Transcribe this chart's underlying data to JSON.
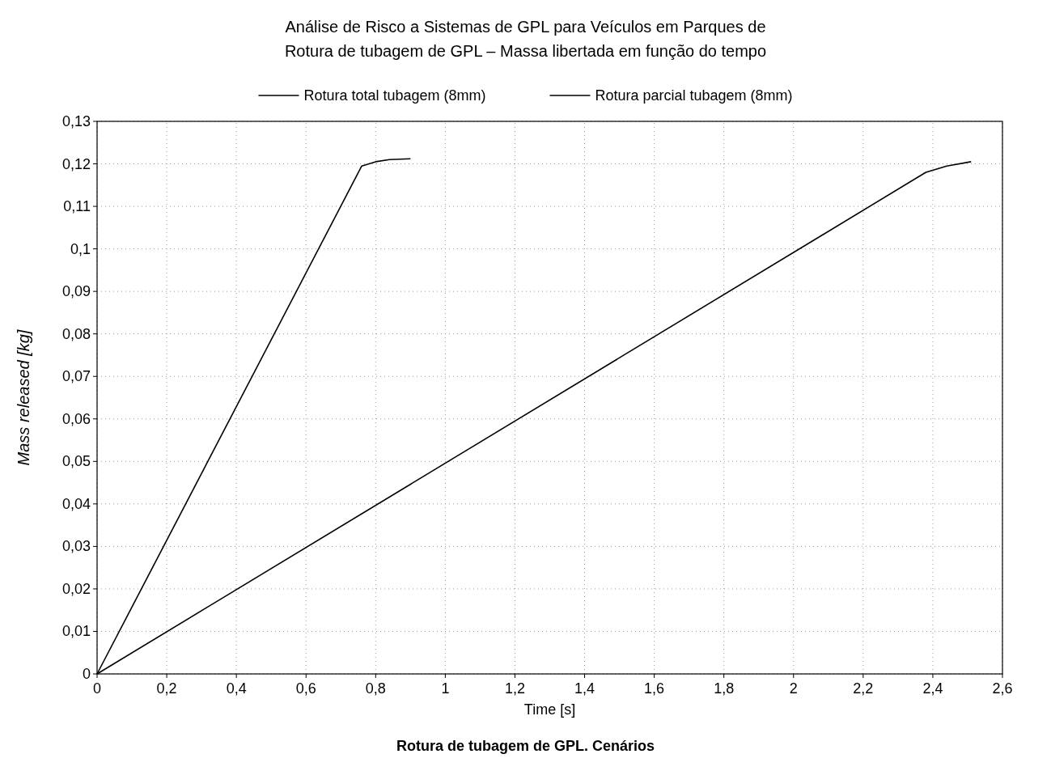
{
  "chart_data": {
    "type": "line",
    "title": "Análise de Risco a Sistemas de GPL para Veículos em Parques de",
    "subtitle": "Rotura de tubagem de GPL – Massa libertada em função do tempo",
    "xlabel": "Time [s]",
    "ylabel": "Mass released [kg]",
    "series": [
      {
        "name": "Rotura total tubagem (8mm)",
        "color": "#000000",
        "x": [
          0,
          0.76,
          0.8,
          0.84,
          0.9
        ],
        "values": [
          0,
          0.1195,
          0.1205,
          0.121,
          0.1212
        ]
      },
      {
        "name": "Rotura parcial tubagem (8mm)",
        "color": "#000000",
        "x": [
          0,
          2.38,
          2.44,
          2.51
        ],
        "values": [
          0,
          0.118,
          0.1195,
          0.1205
        ]
      }
    ],
    "xlim": [
      0,
      2.6
    ],
    "xticks": [
      0,
      {
        "value": 0.2,
        "label": "0,2"
      },
      {
        "value": 0.4,
        "label": "0,4"
      },
      {
        "value": 0.6,
        "label": "0,6"
      },
      {
        "value": 0.8,
        "label": "0,8"
      },
      1,
      {
        "value": 1.2,
        "label": "1,2"
      },
      {
        "value": 1.4,
        "label": "1,4"
      },
      {
        "value": 1.6,
        "label": "1,6"
      },
      {
        "value": 1.8,
        "label": "1,8"
      },
      2,
      {
        "value": 2.2,
        "label": "2,2"
      },
      {
        "value": 2.4,
        "label": "2,4"
      },
      {
        "value": 2.6,
        "label": "2,6"
      }
    ],
    "ylim": [
      0,
      0.13
    ],
    "yticks": [
      0,
      {
        "value": 0.01,
        "label": "0,01"
      },
      {
        "value": 0.02,
        "label": "0,02"
      },
      {
        "value": 0.03,
        "label": "0,03"
      },
      {
        "value": 0.04,
        "label": "0,04"
      },
      {
        "value": 0.05,
        "label": "0,05"
      },
      {
        "value": 0.06,
        "label": "0,06"
      },
      {
        "value": 0.07,
        "label": "0,07"
      },
      {
        "value": 0.08,
        "label": "0,08"
      },
      {
        "value": 0.09,
        "label": "0,09"
      },
      {
        "value": 0.1,
        "label": "0,1"
      },
      {
        "value": 0.11,
        "label": "0,11"
      },
      {
        "value": 0.12,
        "label": "0,12"
      },
      {
        "value": 0.13,
        "label": "0,13"
      }
    ],
    "grid": true,
    "legend": "top",
    "marker": "none",
    "line_style": "solid",
    "annotations": [
      "Rotura de tubagem de GPL. Cenários"
    ]
  }
}
